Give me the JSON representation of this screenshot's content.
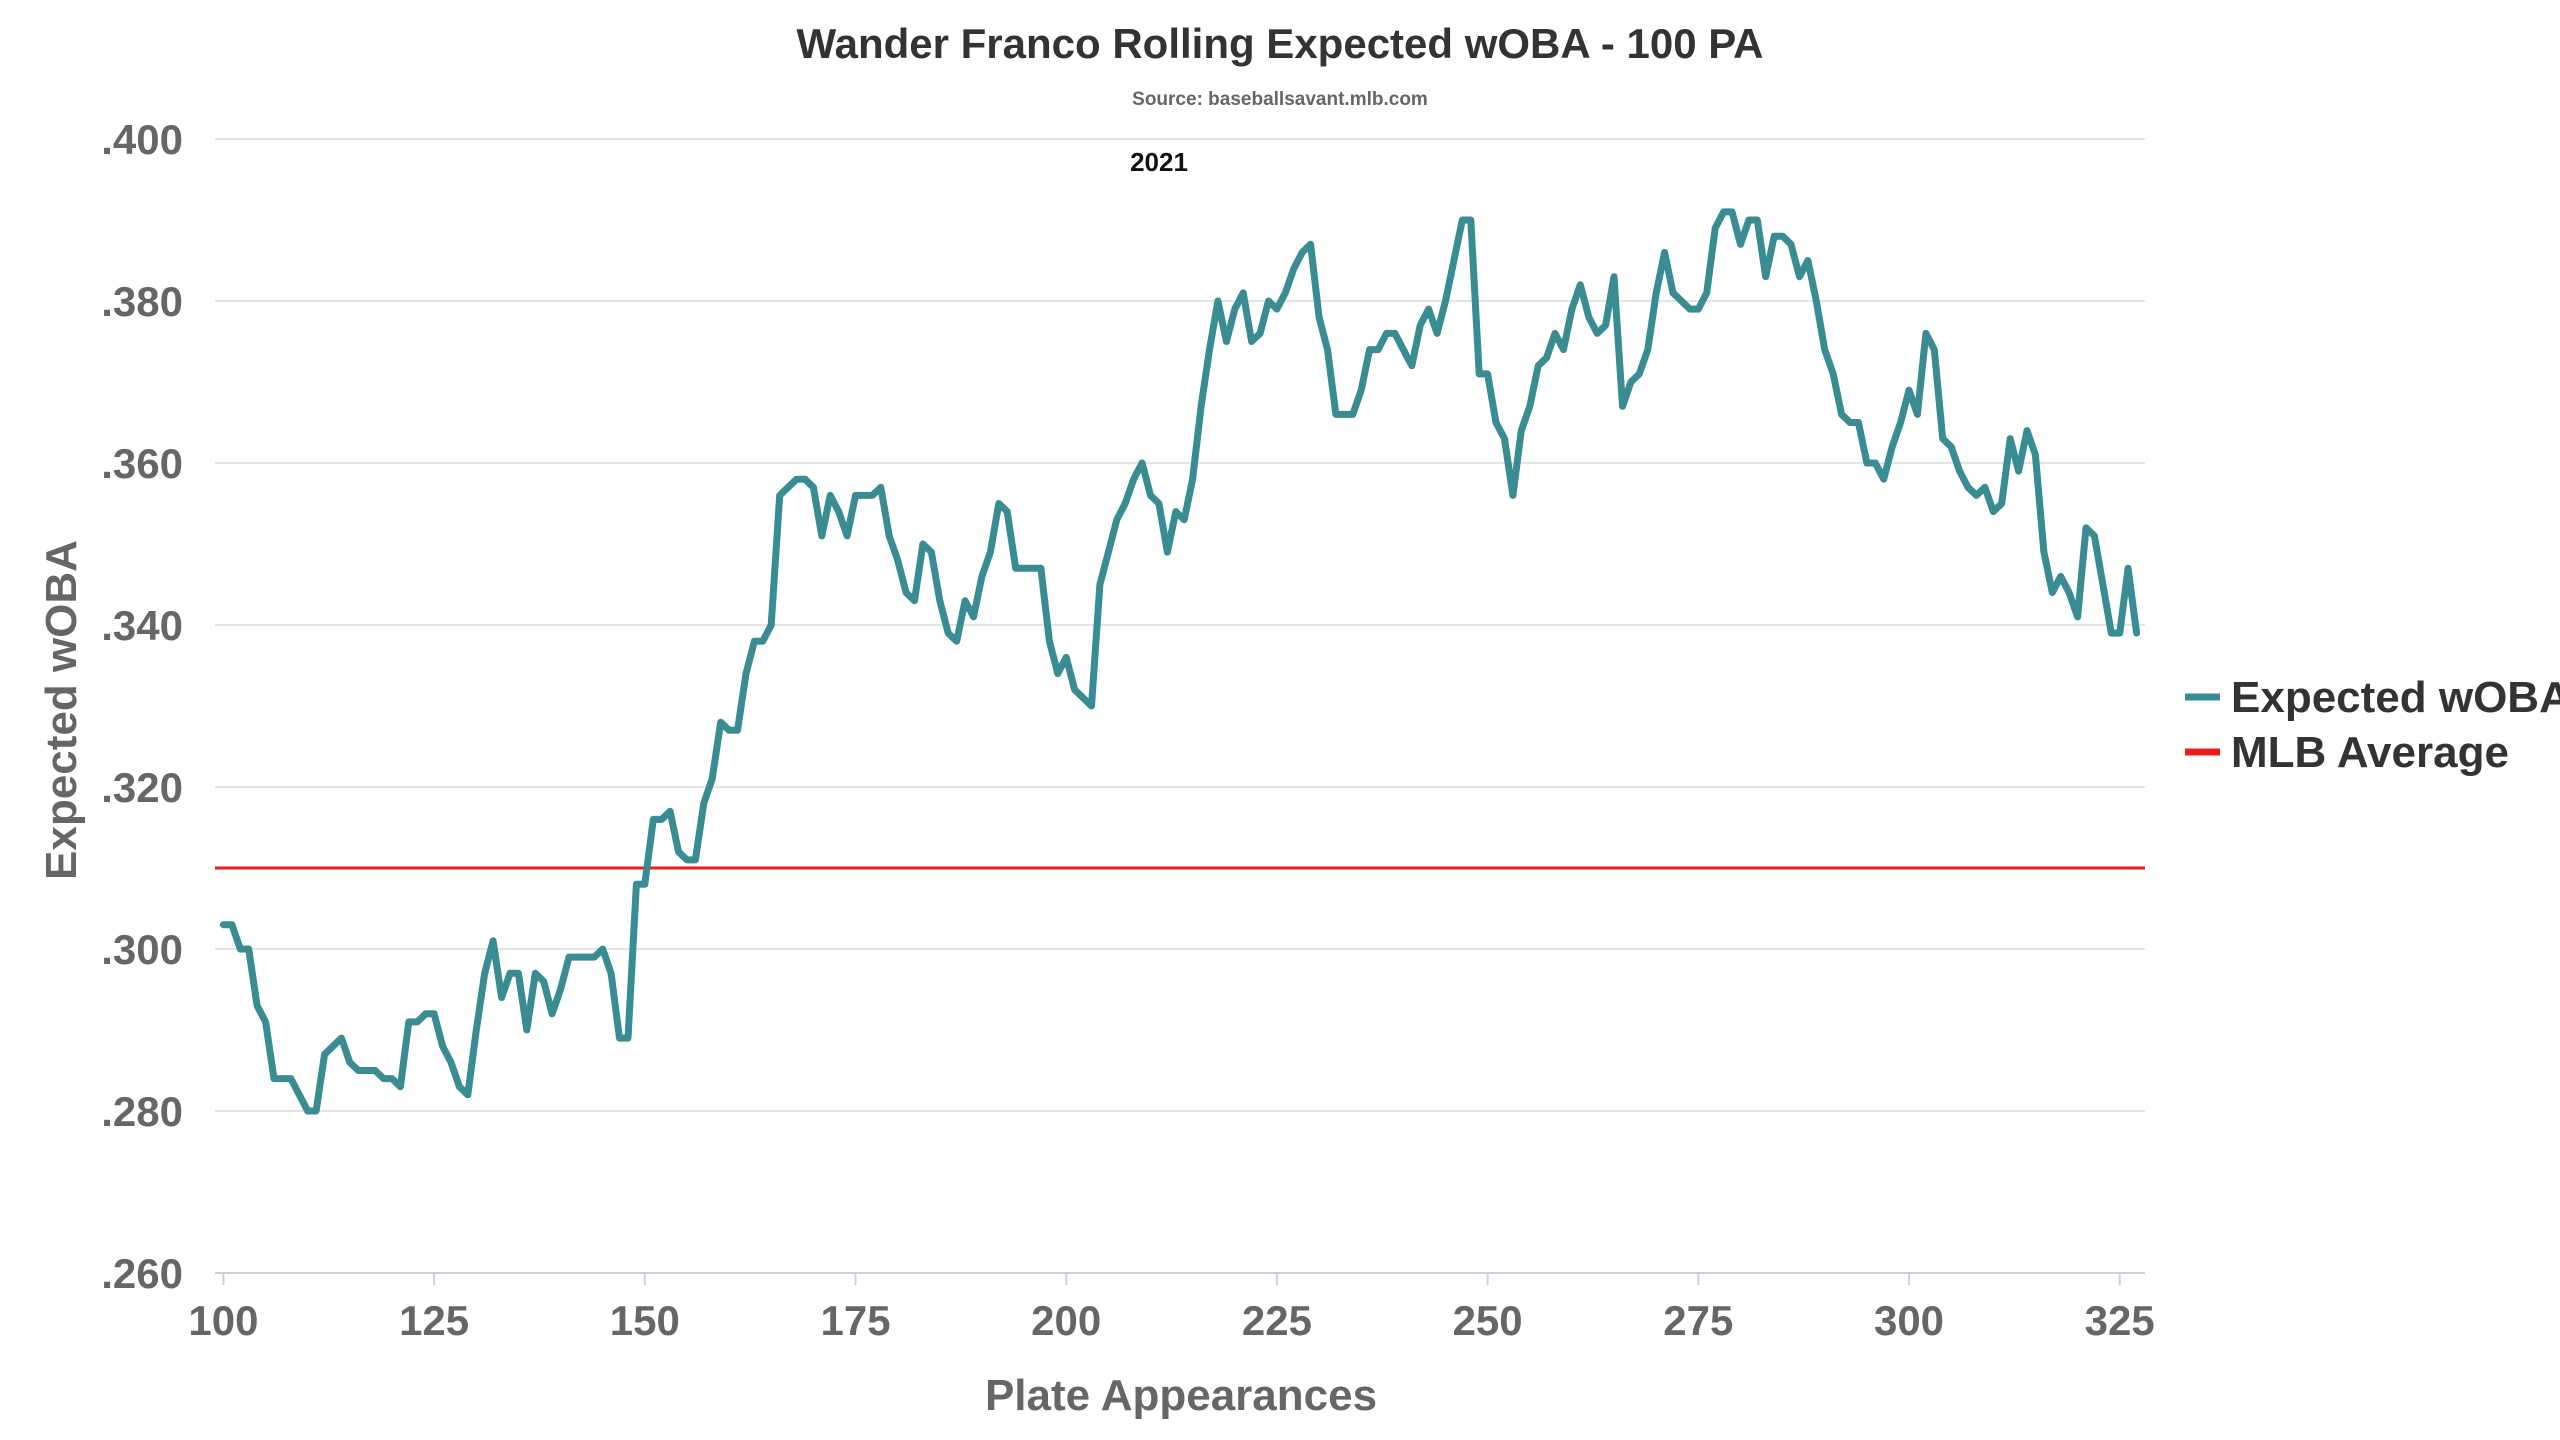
{
  "chart_data": {
    "type": "line",
    "title": "Wander Franco Rolling Expected wOBA - 100 PA",
    "subtitle": "Source: baseballsavant.mlb.com",
    "annotation": "2021",
    "xlabel": "Plate Appearances",
    "ylabel": "Expected wOBA",
    "xlim": [
      99,
      328
    ],
    "ylim": [
      0.26,
      0.4
    ],
    "x_ticks": [
      100,
      125,
      150,
      175,
      200,
      225,
      250,
      275,
      300,
      325
    ],
    "x_tick_labels": [
      "100",
      "125",
      "150",
      "175",
      "200",
      "225",
      "250",
      "275",
      "300",
      "325"
    ],
    "y_ticks": [
      0.26,
      0.28,
      0.3,
      0.32,
      0.34,
      0.36,
      0.38,
      0.4
    ],
    "y_tick_labels": [
      ".260",
      ".280",
      ".300",
      ".320",
      ".340",
      ".360",
      ".380",
      ".400"
    ],
    "grid": "horizontal",
    "legend_position": "right",
    "colors": {
      "series": "#3a8c93",
      "average": "#ee1c1c",
      "grid": "#e4e4e4",
      "axis": "#c8d2de"
    },
    "x": [
      100,
      101,
      102,
      103,
      104,
      105,
      106,
      107,
      108,
      109,
      110,
      111,
      112,
      113,
      114,
      115,
      116,
      117,
      118,
      119,
      120,
      121,
      122,
      123,
      124,
      125,
      126,
      127,
      128,
      129,
      130,
      131,
      132,
      133,
      134,
      135,
      136,
      137,
      138,
      139,
      140,
      141,
      142,
      143,
      144,
      145,
      146,
      147,
      148,
      149,
      150,
      151,
      152,
      153,
      154,
      155,
      156,
      157,
      158,
      159,
      160,
      161,
      162,
      163,
      164,
      165,
      166,
      167,
      168,
      169,
      170,
      171,
      172,
      173,
      174,
      175,
      176,
      177,
      178,
      179,
      180,
      181,
      182,
      183,
      184,
      185,
      186,
      187,
      188,
      189,
      190,
      191,
      192,
      193,
      194,
      195,
      196,
      197,
      198,
      199,
      200,
      201,
      202,
      203,
      204,
      205,
      206,
      207,
      208,
      209,
      210,
      211,
      212,
      213,
      214,
      215,
      216,
      217,
      218,
      219,
      220,
      221,
      222,
      223,
      224,
      225,
      226,
      227,
      228,
      229,
      230,
      231,
      232,
      233,
      234,
      235,
      236,
      237,
      238,
      239,
      240,
      241,
      242,
      243,
      244,
      245,
      246,
      247,
      248,
      249,
      250,
      251,
      252,
      253,
      254,
      255,
      256,
      257,
      258,
      259,
      260,
      261,
      262,
      263,
      264,
      265,
      266,
      267,
      268,
      269,
      270,
      271,
      272,
      273,
      274,
      275,
      276,
      277,
      278,
      279,
      280,
      281,
      282,
      283,
      284,
      285,
      286,
      287,
      288,
      289,
      290,
      291,
      292,
      293,
      294,
      295,
      296,
      297,
      298,
      299,
      300,
      301,
      302,
      303,
      304,
      305,
      306,
      307,
      308,
      309,
      310,
      311,
      312,
      313,
      314,
      315,
      316,
      317,
      318,
      319,
      320,
      321,
      322,
      323,
      324,
      325,
      326,
      327
    ],
    "series": [
      {
        "name": "Expected wOBA",
        "values": [
          0.303,
          0.303,
          0.3,
          0.3,
          0.293,
          0.291,
          0.284,
          0.284,
          0.284,
          0.282,
          0.28,
          0.28,
          0.287,
          0.288,
          0.289,
          0.286,
          0.285,
          0.285,
          0.285,
          0.284,
          0.284,
          0.283,
          0.291,
          0.291,
          0.292,
          0.292,
          0.288,
          0.286,
          0.283,
          0.282,
          0.29,
          0.297,
          0.301,
          0.294,
          0.297,
          0.297,
          0.29,
          0.297,
          0.296,
          0.292,
          0.295,
          0.299,
          0.299,
          0.299,
          0.299,
          0.3,
          0.297,
          0.289,
          0.289,
          0.308,
          0.308,
          0.316,
          0.316,
          0.317,
          0.312,
          0.311,
          0.311,
          0.318,
          0.321,
          0.328,
          0.327,
          0.327,
          0.334,
          0.338,
          0.338,
          0.34,
          0.356,
          0.357,
          0.358,
          0.358,
          0.357,
          0.351,
          0.356,
          0.354,
          0.351,
          0.356,
          0.356,
          0.356,
          0.357,
          0.351,
          0.348,
          0.344,
          0.343,
          0.35,
          0.349,
          0.343,
          0.339,
          0.338,
          0.343,
          0.341,
          0.346,
          0.349,
          0.355,
          0.354,
          0.347,
          0.347,
          0.347,
          0.347,
          0.338,
          0.334,
          0.336,
          0.332,
          0.331,
          0.33,
          0.345,
          0.349,
          0.353,
          0.355,
          0.358,
          0.36,
          0.356,
          0.355,
          0.349,
          0.354,
          0.353,
          0.358,
          0.367,
          0.374,
          0.38,
          0.375,
          0.379,
          0.381,
          0.375,
          0.376,
          0.38,
          0.379,
          0.381,
          0.384,
          0.386,
          0.387,
          0.378,
          0.374,
          0.366,
          0.366,
          0.366,
          0.369,
          0.374,
          0.374,
          0.376,
          0.376,
          0.374,
          0.372,
          0.377,
          0.379,
          0.376,
          0.38,
          0.385,
          0.39,
          0.39,
          0.371,
          0.371,
          0.365,
          0.363,
          0.356,
          0.364,
          0.367,
          0.372,
          0.373,
          0.376,
          0.374,
          0.379,
          0.382,
          0.378,
          0.376,
          0.377,
          0.383,
          0.367,
          0.37,
          0.371,
          0.374,
          0.381,
          0.386,
          0.381,
          0.38,
          0.379,
          0.379,
          0.381,
          0.389,
          0.391,
          0.391,
          0.387,
          0.39,
          0.39,
          0.383,
          0.388,
          0.388,
          0.387,
          0.383,
          0.385,
          0.38,
          0.374,
          0.371,
          0.366,
          0.365,
          0.365,
          0.36,
          0.36,
          0.358,
          0.362,
          0.365,
          0.369,
          0.366,
          0.376,
          0.374,
          0.363,
          0.362,
          0.359,
          0.357,
          0.356,
          0.357,
          0.354,
          0.355,
          0.363,
          0.359,
          0.364,
          0.361,
          0.349,
          0.344,
          0.346,
          0.344,
          0.341,
          0.352,
          0.351,
          0.345,
          0.339,
          0.339,
          0.347,
          0.339
        ]
      },
      {
        "name": "MLB Average",
        "values": [
          0.31,
          0.31
        ],
        "x": [
          99,
          328
        ]
      }
    ]
  }
}
